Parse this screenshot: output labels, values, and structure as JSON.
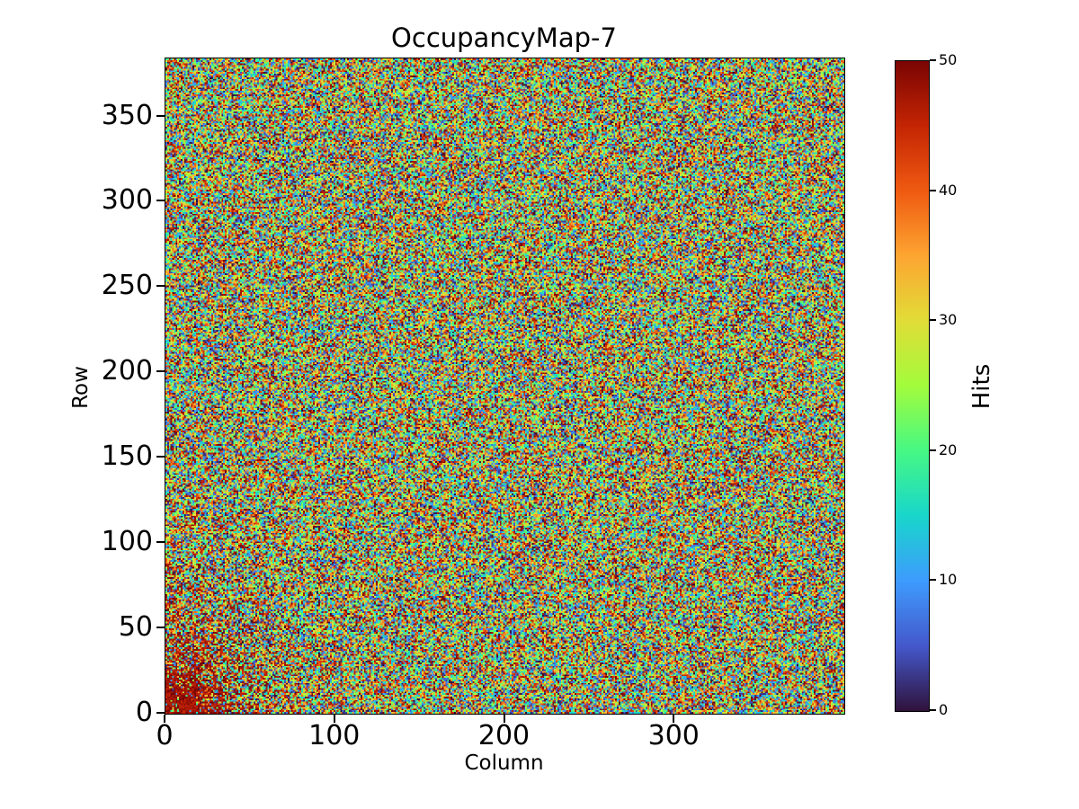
{
  "chart_data": {
    "type": "heatmap",
    "title": "OccupancyMap-7",
    "xlabel": "Column",
    "ylabel": "Row",
    "ncols": 400,
    "nrows": 384,
    "x_range": [
      0,
      400
    ],
    "y_range": [
      0,
      384
    ],
    "x_ticks": [
      0,
      100,
      200,
      300
    ],
    "y_ticks": [
      0,
      50,
      100,
      150,
      200,
      250,
      300,
      350
    ],
    "grid": false,
    "colorbar": {
      "label": "Hits",
      "vmin": 0,
      "vmax": 50,
      "ticks": [
        0,
        10,
        20,
        30,
        40,
        50
      ],
      "colormap": "turbo",
      "colormap_stops": [
        {
          "t": 0.0,
          "color": "#30123b"
        },
        {
          "t": 0.1,
          "color": "#4458cb"
        },
        {
          "t": 0.2,
          "color": "#3e9bfe"
        },
        {
          "t": 0.3,
          "color": "#18d6cb"
        },
        {
          "t": 0.4,
          "color": "#46f884"
        },
        {
          "t": 0.5,
          "color": "#a2fc3c"
        },
        {
          "t": 0.6,
          "color": "#e1dd37"
        },
        {
          "t": 0.7,
          "color": "#fda531"
        },
        {
          "t": 0.8,
          "color": "#ef5a11"
        },
        {
          "t": 0.9,
          "color": "#c42503"
        },
        {
          "t": 1.0,
          "color": "#7a0403"
        }
      ]
    },
    "values_description": "Per-pixel random hit counts spanning the full 0-50 color range (uniform speckle noise over all 400x384 pixels), with a dense cluster of near-maximum (dark red) hits concentrated at the bottom-left corner, roughly columns 0-55 and rows 0-55, fading radially outward.",
    "noise_model": {
      "seed": 7,
      "distribution": "uniform-int",
      "min": 0,
      "max": 50,
      "hotspot": {
        "corner": "bottom-left",
        "radial_decay": 26,
        "strength": 1.6,
        "max_prob": 0.93,
        "hot_min": 45,
        "hot_max": 50
      }
    },
    "text_color": "#000000",
    "background_color": "#ffffff"
  }
}
